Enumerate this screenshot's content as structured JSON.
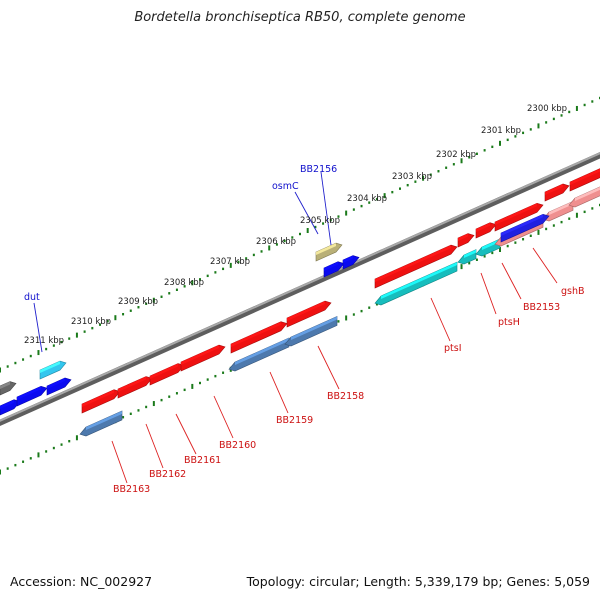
{
  "title": "Bordetella bronchiseptica RB50, complete genome",
  "footer": {
    "accession": "Accession: NC_002927",
    "summary": "Topology: circular; Length: 5,339,179 bp; Genes: 5,059"
  },
  "colors": {
    "backbone": "#8c8c8c",
    "tick_dots": "#1a7a1a",
    "label_blue": "#1010cc",
    "label_red": "#cc1010",
    "leader_blue": "#2020cc",
    "leader_red": "#dd2020"
  },
  "scale_ticks": [
    {
      "label": "2300 kbp"
    },
    {
      "label": "2301 kbp"
    },
    {
      "label": "2302 kbp"
    },
    {
      "label": "2303 kbp"
    },
    {
      "label": "2304 kbp"
    },
    {
      "label": "2305 kbp"
    },
    {
      "label": "2306 kbp"
    },
    {
      "label": "2307 kbp"
    },
    {
      "label": "2308 kbp"
    },
    {
      "label": "2309 kbp"
    },
    {
      "label": "2310 kbp"
    },
    {
      "label": "2311 kbp"
    }
  ],
  "gene_labels": [
    {
      "text": "BB2156",
      "color": "blue"
    },
    {
      "text": "osmC",
      "color": "blue"
    },
    {
      "text": "dut",
      "color": "blue"
    },
    {
      "text": "gshB",
      "color": "red"
    },
    {
      "text": "BB2153",
      "color": "red"
    },
    {
      "text": "ptsH",
      "color": "red"
    },
    {
      "text": "ptsI",
      "color": "red"
    },
    {
      "text": "BB2158",
      "color": "red"
    },
    {
      "text": "BB2159",
      "color": "red"
    },
    {
      "text": "BB2160",
      "color": "red"
    },
    {
      "text": "BB2161",
      "color": "red"
    },
    {
      "text": "BB2162",
      "color": "red"
    },
    {
      "text": "BB2163",
      "color": "red"
    }
  ]
}
